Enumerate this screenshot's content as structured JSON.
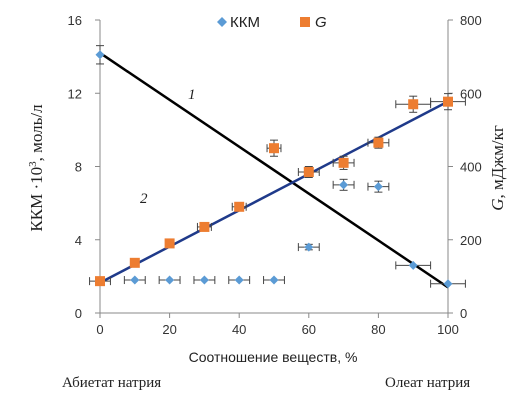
{
  "chart_data": {
    "type": "scatter",
    "xlabel": "Соотношение веществ, %",
    "ylabel_left": "ККМ ·10",
    "ylabel_left_sup": "3",
    "ylabel_left_suffix": ", моль/л",
    "ylabel_right": "G, мДжм/кг",
    "ylabel_right_var": "G",
    "ylabel_right_suffix": ", мДжм/кг",
    "xlim": [
      0,
      100
    ],
    "ylim_left": [
      0,
      16
    ],
    "ylim_right": [
      0,
      800
    ],
    "x_ticks": [
      "0",
      "20",
      "40",
      "60",
      "80",
      "100"
    ],
    "y_left_ticks": [
      "0",
      "4",
      "8",
      "12",
      "16"
    ],
    "y_right_ticks": [
      "0",
      "200",
      "400",
      "600",
      "800"
    ],
    "legend": [
      "ККМ",
      "G"
    ],
    "legend_position": "top-center",
    "grid": false,
    "bottom_left_label": "Абиетат натрия",
    "bottom_right_label": "Олеат натрия",
    "series": [
      {
        "name": "ККМ",
        "axis": "left",
        "marker": "diamond",
        "color": "#5b9bd5",
        "x": [
          0,
          10,
          20,
          30,
          40,
          50,
          60,
          70,
          80,
          90,
          100
        ],
        "y": [
          14.1,
          1.8,
          1.8,
          1.8,
          1.8,
          1.8,
          3.6,
          7.0,
          6.9,
          2.6,
          1.6
        ],
        "xerr": [
          0,
          3,
          3,
          3,
          3,
          3,
          3,
          3,
          3,
          5,
          5
        ],
        "yerr": [
          0.5,
          0,
          0,
          0,
          0,
          0,
          0.15,
          0.3,
          0.3,
          0,
          0
        ]
      },
      {
        "name": "G",
        "axis": "right",
        "marker": "square",
        "color": "#ed7d31",
        "x": [
          0,
          10,
          20,
          30,
          40,
          50,
          60,
          70,
          80,
          90,
          100
        ],
        "y": [
          87,
          137,
          190,
          235,
          290,
          450,
          385,
          410,
          465,
          570,
          577
        ],
        "xerr": [
          3,
          0,
          0,
          2,
          2,
          2,
          3,
          3,
          3,
          5,
          5
        ],
        "yerr": [
          0,
          0,
          0,
          0,
          10,
          22,
          15,
          18,
          15,
          22,
          22
        ]
      }
    ],
    "trendlines": [
      {
        "label": "1",
        "color": "#000000",
        "axis": "left",
        "from": [
          0,
          14.2
        ],
        "to": [
          100,
          1.4
        ]
      },
      {
        "label": "2",
        "color": "#1f3a8a",
        "axis": "left",
        "from": [
          0,
          1.65
        ],
        "to": [
          100,
          11.55
        ]
      }
    ]
  }
}
